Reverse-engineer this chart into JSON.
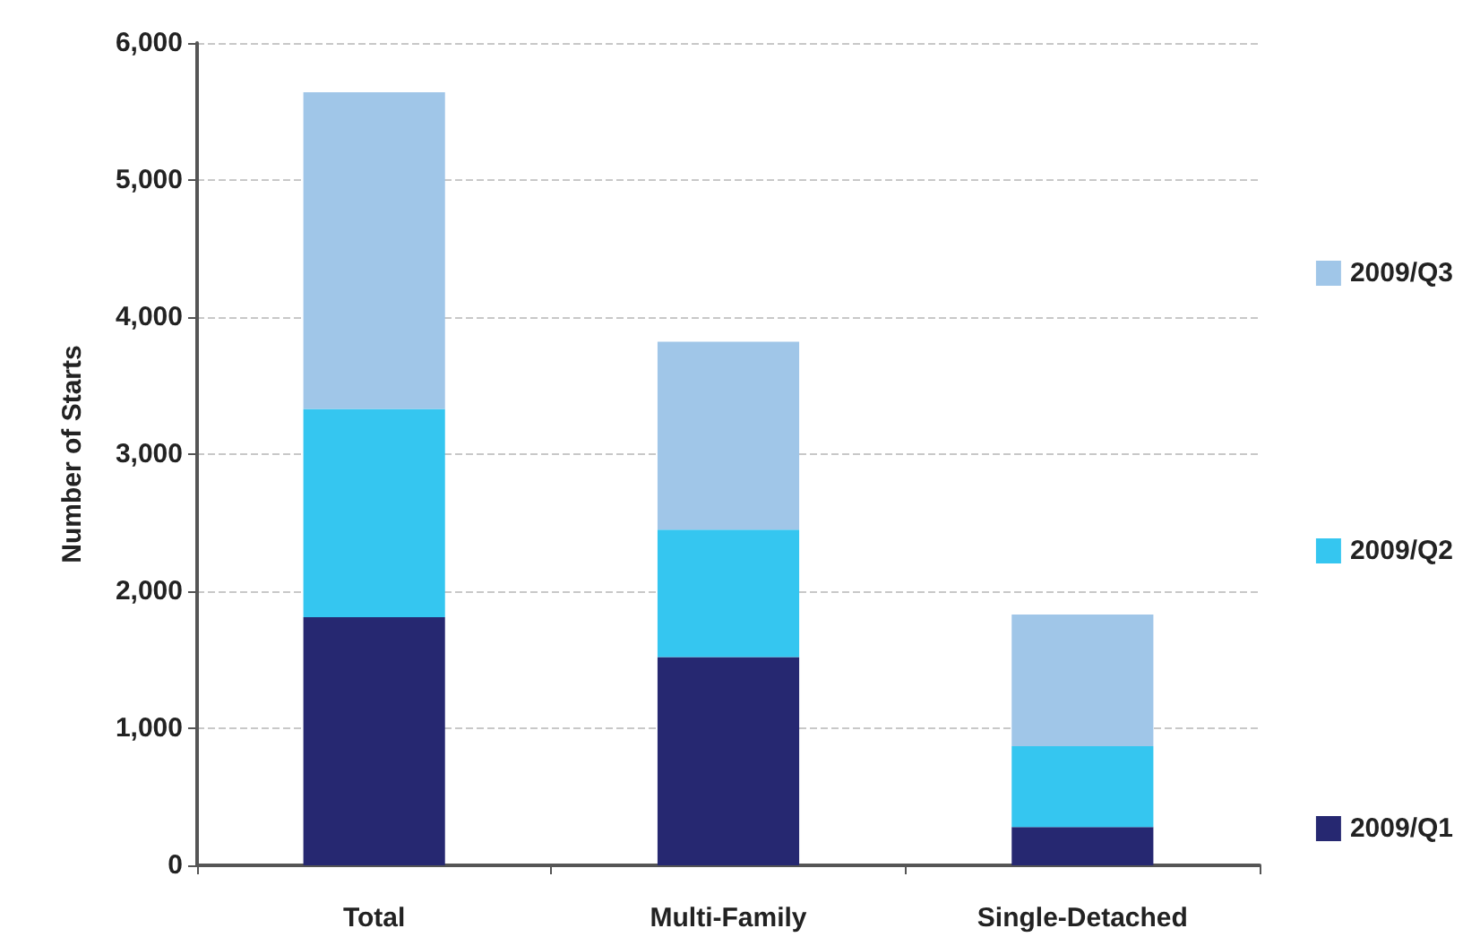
{
  "chart_data": {
    "type": "bar",
    "stacked": true,
    "ylabel": "Number of Starts",
    "categories": [
      "Total",
      "Multi-Family",
      "Single-Detached"
    ],
    "series": [
      {
        "name": "2009/Q1",
        "color": "#262871",
        "values": [
          1810,
          1520,
          280
        ]
      },
      {
        "name": "2009/Q2",
        "color": "#35c6f0",
        "values": [
          1520,
          930,
          590
        ]
      },
      {
        "name": "2009/Q3",
        "color": "#a0c6e8",
        "values": [
          2310,
          1370,
          960
        ]
      }
    ],
    "ylim": [
      0,
      6000
    ],
    "yticks": [
      0,
      {
        "value": 1000,
        "label": "1,000"
      },
      {
        "value": 2000,
        "label": "2,000"
      },
      {
        "value": 3000,
        "label": "3,000"
      },
      {
        "value": 4000,
        "label": "4,000"
      },
      {
        "value": 5000,
        "label": "5,000"
      },
      {
        "value": 6000,
        "label": "6,000"
      }
    ],
    "grid": "y",
    "legend": "right"
  }
}
